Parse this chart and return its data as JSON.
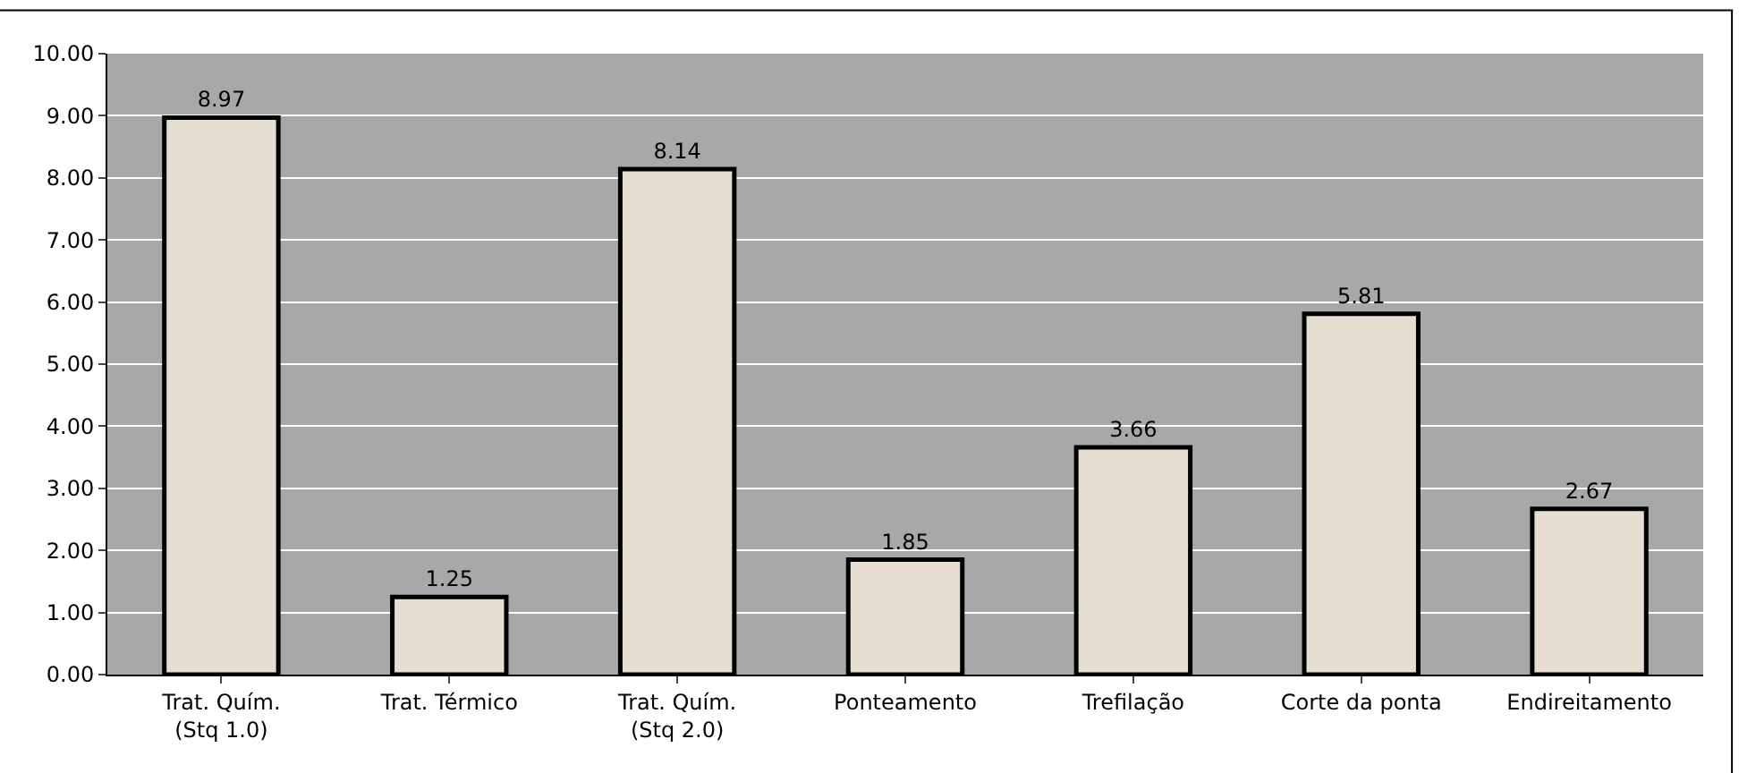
{
  "chart_data": {
    "type": "bar",
    "categories": [
      "Trat. Quím.\n(Stq 1.0)",
      "Trat. Térmico",
      "Trat. Quím.\n(Stq 2.0)",
      "Ponteamento",
      "Trefilação",
      "Corte da ponta",
      "Endireitamento"
    ],
    "values": [
      8.97,
      1.25,
      8.14,
      1.85,
      3.66,
      5.81,
      2.67
    ],
    "color": "#e6dfd1",
    "ylim": [
      0,
      10
    ],
    "yticks": [
      {
        "value": 0,
        "label": "0.00"
      },
      {
        "value": 1,
        "label": "1.00"
      },
      {
        "value": 2,
        "label": "2.00"
      },
      {
        "value": 3,
        "label": "3.00"
      },
      {
        "value": 4,
        "label": "4.00"
      },
      {
        "value": 5,
        "label": "5.00"
      },
      {
        "value": 6,
        "label": "6.00"
      },
      {
        "value": 7,
        "label": "7.00"
      },
      {
        "value": 8,
        "label": "8.00"
      },
      {
        "value": 9,
        "label": "9.00"
      },
      {
        "value": 10,
        "label": "10.00"
      }
    ],
    "grid": "y",
    "data_labels": true
  }
}
